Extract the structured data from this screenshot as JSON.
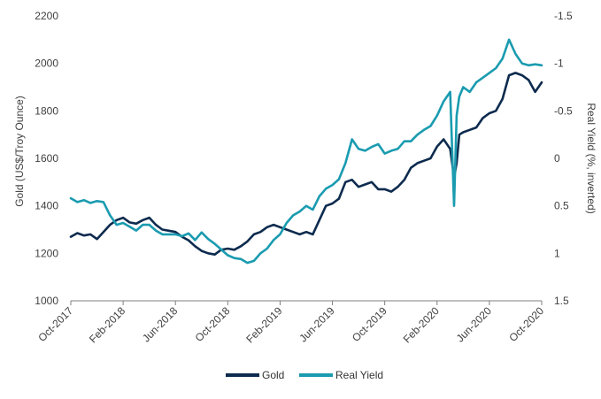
{
  "chart_data": {
    "type": "line",
    "title": "",
    "x_tick_labels": [
      "Oct-2017",
      "Feb-2018",
      "Jun-2018",
      "Oct-2018",
      "Feb-2019",
      "Jun-2019",
      "Oct-2019",
      "Feb-2020",
      "Jun-2020",
      "Oct-2020"
    ],
    "x_ticks_month_index": [
      0,
      4,
      8,
      12,
      16,
      20,
      24,
      28,
      32,
      36
    ],
    "xlim_month_index": [
      0,
      36
    ],
    "left_axis": {
      "label": "Gold (US$/Troy Ounce)",
      "ylim": [
        1000,
        2200
      ],
      "ticks": [
        1000,
        1200,
        1400,
        1600,
        1800,
        2000,
        2200
      ]
    },
    "right_axis": {
      "label": "Real Yield (%, inverted)",
      "inverted": true,
      "ylim": [
        1.5,
        -1.5
      ],
      "ticks": [
        1.5,
        1,
        0.5,
        0,
        -0.5,
        -1,
        -1.5
      ],
      "tick_labels": [
        "1.5",
        "1",
        "0.5",
        "0",
        "-0.5",
        "-1",
        "-1.5"
      ]
    },
    "grid": false,
    "legend_position": "bottom-center",
    "series": [
      {
        "name": "Gold",
        "axis": "left",
        "color": "#0d2b4e",
        "x": [
          0,
          0.5,
          1,
          1.5,
          2,
          2.5,
          3,
          3.5,
          4,
          4.5,
          5,
          5.5,
          6,
          6.5,
          7,
          7.5,
          8,
          8.5,
          9,
          9.5,
          10,
          10.5,
          11,
          11.5,
          12,
          12.5,
          13,
          13.5,
          14,
          14.5,
          15,
          15.5,
          16,
          16.5,
          17,
          17.5,
          18,
          18.5,
          19,
          19.5,
          20,
          20.5,
          21,
          21.5,
          22,
          22.5,
          23,
          23.5,
          24,
          24.5,
          25,
          25.5,
          26,
          26.5,
          27,
          27.5,
          28,
          28.5,
          29,
          29.3,
          29.5,
          29.7,
          30,
          30.5,
          31,
          31.5,
          32,
          32.5,
          33,
          33.5,
          34,
          34.5,
          35,
          35.5,
          36
        ],
        "values": [
          1270,
          1285,
          1275,
          1280,
          1260,
          1290,
          1320,
          1340,
          1350,
          1330,
          1325,
          1340,
          1350,
          1320,
          1300,
          1295,
          1290,
          1270,
          1255,
          1230,
          1210,
          1200,
          1195,
          1215,
          1220,
          1215,
          1230,
          1250,
          1280,
          1290,
          1310,
          1320,
          1310,
          1300,
          1290,
          1280,
          1290,
          1280,
          1340,
          1400,
          1410,
          1430,
          1500,
          1510,
          1480,
          1490,
          1500,
          1470,
          1470,
          1460,
          1480,
          1510,
          1560,
          1580,
          1590,
          1600,
          1650,
          1680,
          1640,
          1520,
          1580,
          1700,
          1710,
          1720,
          1730,
          1770,
          1790,
          1800,
          1850,
          1950,
          1960,
          1950,
          1930,
          1880,
          1920
        ]
      },
      {
        "name": "Real Yield",
        "axis": "right",
        "color": "#1a9bb0",
        "x": [
          0,
          0.5,
          1,
          1.5,
          2,
          2.5,
          3,
          3.5,
          4,
          4.5,
          5,
          5.5,
          6,
          6.5,
          7,
          7.5,
          8,
          8.5,
          9,
          9.5,
          10,
          10.5,
          11,
          11.5,
          12,
          12.5,
          13,
          13.5,
          14,
          14.5,
          15,
          15.5,
          16,
          16.5,
          17,
          17.5,
          18,
          18.5,
          19,
          19.5,
          20,
          20.5,
          21,
          21.5,
          22,
          22.5,
          23,
          23.5,
          24,
          24.5,
          25,
          25.5,
          26,
          26.5,
          27,
          27.5,
          28,
          28.5,
          29,
          29.3,
          29.5,
          29.7,
          30,
          30.5,
          31,
          31.5,
          32,
          32.5,
          33,
          33.5,
          34,
          34.5,
          35,
          35.5,
          36
        ],
        "values": [
          0.42,
          0.46,
          0.44,
          0.47,
          0.45,
          0.46,
          0.6,
          0.7,
          0.68,
          0.72,
          0.76,
          0.7,
          0.7,
          0.76,
          0.8,
          0.8,
          0.8,
          0.82,
          0.79,
          0.86,
          0.78,
          0.85,
          0.9,
          0.96,
          1.02,
          1.05,
          1.06,
          1.1,
          1.08,
          1.0,
          0.95,
          0.86,
          0.8,
          0.68,
          0.6,
          0.56,
          0.5,
          0.54,
          0.4,
          0.32,
          0.28,
          0.22,
          0.05,
          -0.2,
          -0.1,
          -0.08,
          -0.12,
          -0.15,
          -0.05,
          -0.08,
          -0.1,
          -0.18,
          -0.18,
          -0.25,
          -0.3,
          -0.34,
          -0.45,
          -0.6,
          -0.7,
          0.5,
          -0.45,
          -0.65,
          -0.75,
          -0.7,
          -0.8,
          -0.85,
          -0.9,
          -0.95,
          -1.05,
          -1.25,
          -1.1,
          -1.0,
          -0.98,
          -0.99,
          -0.98
        ]
      }
    ]
  }
}
